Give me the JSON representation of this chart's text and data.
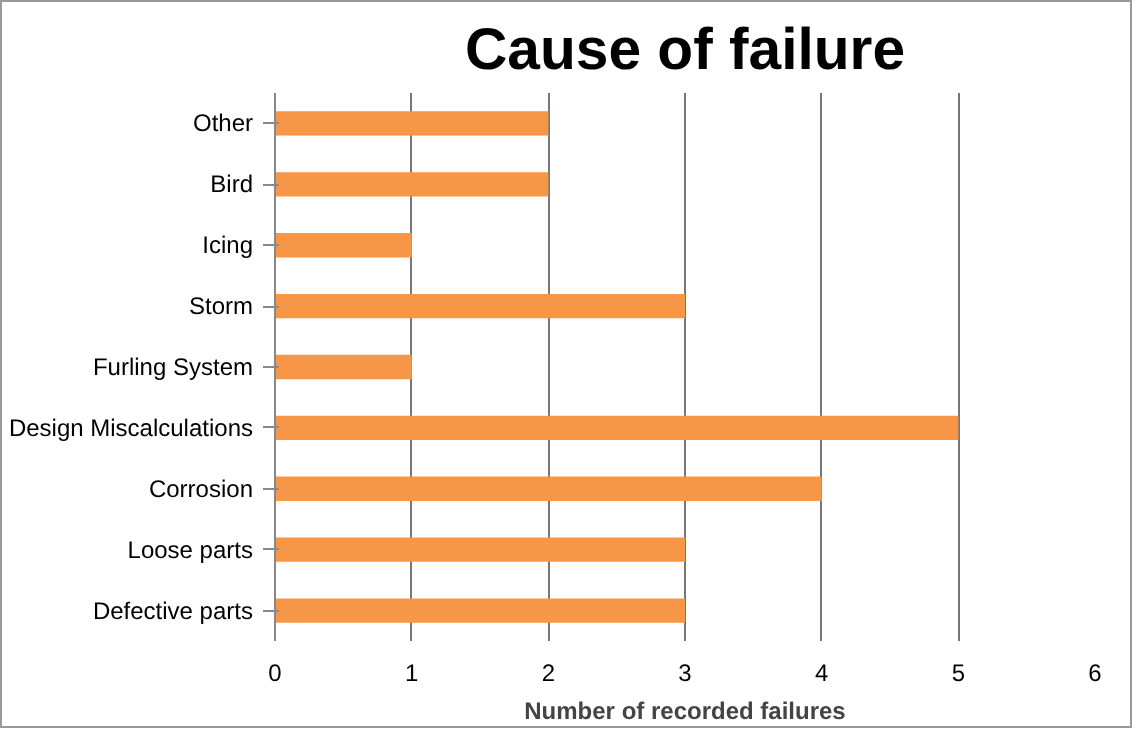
{
  "chart_data": {
    "type": "bar",
    "orientation": "horizontal",
    "title": "Cause of failure",
    "xlabel": "Number of recorded failures",
    "categories": [
      "Other",
      "Bird",
      "Icing",
      "Storm",
      "Furling System",
      "Design Miscalculations",
      "Corrosion",
      "Loose parts",
      "Defective parts"
    ],
    "values": [
      2,
      2,
      1,
      3,
      1,
      5,
      4,
      3,
      3
    ],
    "color": "#f79646",
    "xlim": [
      0,
      6
    ],
    "xticks": [
      0,
      1,
      2,
      3,
      4,
      5,
      6
    ],
    "grid": "x"
  }
}
